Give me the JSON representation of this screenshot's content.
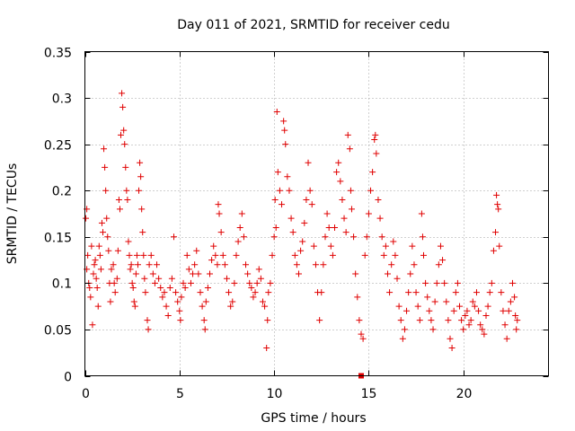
{
  "chart_data": {
    "type": "scatter",
    "title": "Day 011 of 2021, SRMTID for receiver cedu",
    "xlabel": "GPS time / hours",
    "ylabel": "SRMTID / TECUs",
    "xlim": [
      0,
      24.5
    ],
    "ylim": [
      0,
      0.35
    ],
    "x_ticks": [
      0,
      5,
      10,
      15,
      20
    ],
    "x_tick_labels": [
      "0",
      "5",
      "10",
      "15",
      "20"
    ],
    "y_ticks": [
      0,
      0.05,
      0.1,
      0.15,
      0.2,
      0.25,
      0.3,
      0.35
    ],
    "y_tick_labels": [
      "0",
      "0.05",
      "0.1",
      "0.15",
      "0.2",
      "0.25",
      "0.3",
      "0.35"
    ],
    "grid": true,
    "marker": "plus",
    "color": "#e00000",
    "series": [
      {
        "name": "SRMTID",
        "points": [
          [
            0.05,
            0.17
          ],
          [
            0.1,
            0.18
          ],
          [
            0.1,
            0.115
          ],
          [
            0.15,
            0.13
          ],
          [
            0.2,
            0.1
          ],
          [
            0.25,
            0.095
          ],
          [
            0.3,
            0.085
          ],
          [
            0.35,
            0.14
          ],
          [
            0.4,
            0.055
          ],
          [
            0.45,
            0.11
          ],
          [
            0.5,
            0.12
          ],
          [
            0.55,
            0.125
          ],
          [
            0.6,
            0.105
          ],
          [
            0.65,
            0.095
          ],
          [
            0.7,
            0.075
          ],
          [
            0.75,
            0.14
          ],
          [
            0.8,
            0.13
          ],
          [
            0.85,
            0.115
          ],
          [
            0.9,
            0.165
          ],
          [
            0.95,
            0.155
          ],
          [
            1.0,
            0.245
          ],
          [
            1.05,
            0.225
          ],
          [
            1.1,
            0.2
          ],
          [
            1.15,
            0.17
          ],
          [
            1.2,
            0.15
          ],
          [
            1.25,
            0.135
          ],
          [
            1.3,
            0.1
          ],
          [
            1.35,
            0.08
          ],
          [
            1.4,
            0.115
          ],
          [
            1.5,
            0.12
          ],
          [
            1.55,
            0.1
          ],
          [
            1.6,
            0.09
          ],
          [
            1.7,
            0.105
          ],
          [
            1.75,
            0.135
          ],
          [
            1.8,
            0.19
          ],
          [
            1.85,
            0.18
          ],
          [
            1.9,
            0.26
          ],
          [
            1.95,
            0.305
          ],
          [
            2.0,
            0.29
          ],
          [
            2.05,
            0.265
          ],
          [
            2.1,
            0.25
          ],
          [
            2.15,
            0.225
          ],
          [
            2.2,
            0.2
          ],
          [
            2.25,
            0.19
          ],
          [
            2.3,
            0.145
          ],
          [
            2.35,
            0.13
          ],
          [
            2.4,
            0.115
          ],
          [
            2.45,
            0.12
          ],
          [
            2.5,
            0.1
          ],
          [
            2.55,
            0.095
          ],
          [
            2.6,
            0.08
          ],
          [
            2.65,
            0.075
          ],
          [
            2.7,
            0.11
          ],
          [
            2.75,
            0.13
          ],
          [
            2.8,
            0.12
          ],
          [
            2.85,
            0.2
          ],
          [
            2.9,
            0.23
          ],
          [
            2.95,
            0.215
          ],
          [
            3.0,
            0.18
          ],
          [
            3.05,
            0.155
          ],
          [
            3.1,
            0.13
          ],
          [
            3.15,
            0.105
          ],
          [
            3.2,
            0.09
          ],
          [
            3.3,
            0.06
          ],
          [
            3.35,
            0.05
          ],
          [
            3.4,
            0.12
          ],
          [
            3.5,
            0.13
          ],
          [
            3.6,
            0.11
          ],
          [
            3.7,
            0.1
          ],
          [
            3.8,
            0.12
          ],
          [
            3.9,
            0.105
          ],
          [
            4.0,
            0.095
          ],
          [
            4.1,
            0.085
          ],
          [
            4.2,
            0.09
          ],
          [
            4.3,
            0.075
          ],
          [
            4.4,
            0.065
          ],
          [
            4.5,
            0.095
          ],
          [
            4.6,
            0.105
          ],
          [
            4.7,
            0.15
          ],
          [
            4.8,
            0.09
          ],
          [
            4.9,
            0.08
          ],
          [
            5.0,
            0.07
          ],
          [
            5.05,
            0.06
          ],
          [
            5.1,
            0.085
          ],
          [
            5.2,
            0.1
          ],
          [
            5.3,
            0.095
          ],
          [
            5.4,
            0.13
          ],
          [
            5.5,
            0.115
          ],
          [
            5.6,
            0.1
          ],
          [
            5.7,
            0.11
          ],
          [
            5.8,
            0.12
          ],
          [
            5.9,
            0.135
          ],
          [
            6.0,
            0.11
          ],
          [
            6.1,
            0.09
          ],
          [
            6.2,
            0.075
          ],
          [
            6.3,
            0.06
          ],
          [
            6.35,
            0.05
          ],
          [
            6.4,
            0.08
          ],
          [
            6.5,
            0.095
          ],
          [
            6.6,
            0.11
          ],
          [
            6.7,
            0.125
          ],
          [
            6.8,
            0.14
          ],
          [
            6.9,
            0.13
          ],
          [
            7.0,
            0.12
          ],
          [
            7.05,
            0.185
          ],
          [
            7.1,
            0.175
          ],
          [
            7.2,
            0.155
          ],
          [
            7.3,
            0.13
          ],
          [
            7.4,
            0.12
          ],
          [
            7.5,
            0.105
          ],
          [
            7.6,
            0.09
          ],
          [
            7.7,
            0.075
          ],
          [
            7.8,
            0.08
          ],
          [
            7.9,
            0.1
          ],
          [
            8.0,
            0.13
          ],
          [
            8.1,
            0.145
          ],
          [
            8.2,
            0.16
          ],
          [
            8.3,
            0.175
          ],
          [
            8.4,
            0.15
          ],
          [
            8.5,
            0.12
          ],
          [
            8.6,
            0.11
          ],
          [
            8.7,
            0.1
          ],
          [
            8.8,
            0.095
          ],
          [
            8.9,
            0.085
          ],
          [
            9.0,
            0.09
          ],
          [
            9.1,
            0.1
          ],
          [
            9.2,
            0.115
          ],
          [
            9.3,
            0.105
          ],
          [
            9.4,
            0.08
          ],
          [
            9.5,
            0.075
          ],
          [
            9.6,
            0.03
          ],
          [
            9.65,
            0.06
          ],
          [
            9.7,
            0.09
          ],
          [
            9.8,
            0.1
          ],
          [
            9.9,
            0.13
          ],
          [
            10.0,
            0.15
          ],
          [
            10.05,
            0.19
          ],
          [
            10.1,
            0.16
          ],
          [
            10.15,
            0.285
          ],
          [
            10.2,
            0.22
          ],
          [
            10.3,
            0.2
          ],
          [
            10.4,
            0.185
          ],
          [
            10.5,
            0.275
          ],
          [
            10.55,
            0.265
          ],
          [
            10.6,
            0.25
          ],
          [
            10.7,
            0.215
          ],
          [
            10.8,
            0.2
          ],
          [
            10.9,
            0.17
          ],
          [
            11.0,
            0.155
          ],
          [
            11.1,
            0.13
          ],
          [
            11.2,
            0.12
          ],
          [
            11.3,
            0.11
          ],
          [
            11.4,
            0.135
          ],
          [
            11.5,
            0.145
          ],
          [
            11.6,
            0.165
          ],
          [
            11.7,
            0.19
          ],
          [
            11.8,
            0.23
          ],
          [
            11.9,
            0.2
          ],
          [
            12.0,
            0.185
          ],
          [
            12.1,
            0.14
          ],
          [
            12.2,
            0.12
          ],
          [
            12.3,
            0.09
          ],
          [
            12.4,
            0.06
          ],
          [
            12.5,
            0.09
          ],
          [
            12.6,
            0.12
          ],
          [
            12.7,
            0.15
          ],
          [
            12.8,
            0.175
          ],
          [
            12.9,
            0.16
          ],
          [
            13.0,
            0.14
          ],
          [
            13.1,
            0.13
          ],
          [
            13.2,
            0.16
          ],
          [
            13.3,
            0.22
          ],
          [
            13.4,
            0.23
          ],
          [
            13.5,
            0.21
          ],
          [
            13.6,
            0.19
          ],
          [
            13.7,
            0.17
          ],
          [
            13.8,
            0.155
          ],
          [
            13.9,
            0.26
          ],
          [
            14.0,
            0.245
          ],
          [
            14.05,
            0.2
          ],
          [
            14.1,
            0.18
          ],
          [
            14.2,
            0.15
          ],
          [
            14.3,
            0.11
          ],
          [
            14.4,
            0.085
          ],
          [
            14.5,
            0.06
          ],
          [
            14.6,
            0.045
          ],
          [
            14.7,
            0.04
          ],
          [
            14.8,
            0.13
          ],
          [
            14.9,
            0.15
          ],
          [
            15.0,
            0.175
          ],
          [
            15.1,
            0.2
          ],
          [
            15.2,
            0.22
          ],
          [
            15.3,
            0.255
          ],
          [
            15.35,
            0.26
          ],
          [
            15.4,
            0.24
          ],
          [
            15.5,
            0.19
          ],
          [
            15.6,
            0.17
          ],
          [
            15.7,
            0.15
          ],
          [
            15.8,
            0.13
          ],
          [
            15.9,
            0.14
          ],
          [
            16.0,
            0.11
          ],
          [
            16.1,
            0.09
          ],
          [
            16.2,
            0.12
          ],
          [
            16.3,
            0.145
          ],
          [
            16.4,
            0.13
          ],
          [
            16.5,
            0.105
          ],
          [
            16.6,
            0.075
          ],
          [
            16.7,
            0.06
          ],
          [
            16.8,
            0.04
          ],
          [
            16.9,
            0.05
          ],
          [
            17.0,
            0.07
          ],
          [
            17.1,
            0.09
          ],
          [
            17.2,
            0.11
          ],
          [
            17.3,
            0.14
          ],
          [
            17.4,
            0.12
          ],
          [
            17.5,
            0.09
          ],
          [
            17.6,
            0.075
          ],
          [
            17.7,
            0.06
          ],
          [
            17.8,
            0.175
          ],
          [
            17.85,
            0.15
          ],
          [
            17.9,
            0.13
          ],
          [
            18.0,
            0.1
          ],
          [
            18.1,
            0.085
          ],
          [
            18.2,
            0.07
          ],
          [
            18.3,
            0.06
          ],
          [
            18.4,
            0.05
          ],
          [
            18.5,
            0.08
          ],
          [
            18.6,
            0.1
          ],
          [
            18.7,
            0.12
          ],
          [
            18.8,
            0.14
          ],
          [
            18.9,
            0.125
          ],
          [
            19.0,
            0.1
          ],
          [
            19.1,
            0.08
          ],
          [
            19.2,
            0.06
          ],
          [
            19.3,
            0.04
          ],
          [
            19.4,
            0.03
          ],
          [
            19.5,
            0.07
          ],
          [
            19.6,
            0.09
          ],
          [
            19.7,
            0.1
          ],
          [
            19.8,
            0.075
          ],
          [
            19.9,
            0.06
          ],
          [
            20.0,
            0.05
          ],
          [
            20.1,
            0.065
          ],
          [
            20.2,
            0.07
          ],
          [
            20.3,
            0.055
          ],
          [
            20.4,
            0.06
          ],
          [
            20.5,
            0.08
          ],
          [
            20.6,
            0.075
          ],
          [
            20.7,
            0.09
          ],
          [
            20.8,
            0.07
          ],
          [
            20.9,
            0.055
          ],
          [
            21.0,
            0.05
          ],
          [
            21.1,
            0.045
          ],
          [
            21.2,
            0.065
          ],
          [
            21.3,
            0.075
          ],
          [
            21.4,
            0.09
          ],
          [
            21.5,
            0.1
          ],
          [
            21.6,
            0.135
          ],
          [
            21.7,
            0.155
          ],
          [
            21.75,
            0.195
          ],
          [
            21.8,
            0.185
          ],
          [
            21.85,
            0.18
          ],
          [
            21.9,
            0.14
          ],
          [
            22.0,
            0.09
          ],
          [
            22.1,
            0.07
          ],
          [
            22.2,
            0.055
          ],
          [
            22.3,
            0.04
          ],
          [
            22.4,
            0.07
          ],
          [
            22.5,
            0.08
          ],
          [
            22.6,
            0.1
          ],
          [
            22.7,
            0.085
          ],
          [
            22.75,
            0.065
          ],
          [
            22.8,
            0.05
          ],
          [
            22.85,
            0.06
          ]
        ]
      }
    ],
    "extra_point": [
      14.6,
      0.0
    ]
  }
}
